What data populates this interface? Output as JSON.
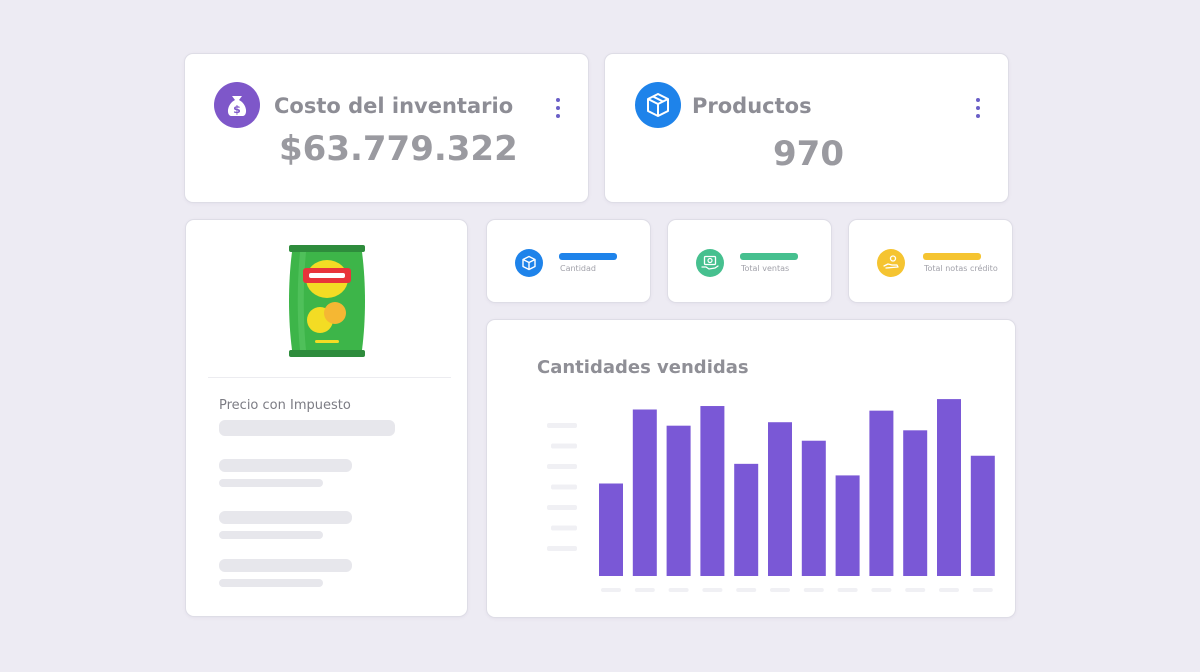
{
  "stats": {
    "costo": {
      "label": "Costo del inventario",
      "value": "$63.779.322",
      "icon": "money-bag-icon",
      "color": "#7e57c9"
    },
    "productos": {
      "label": "Productos",
      "value": "970",
      "icon": "box-icon",
      "color": "#1e83ea"
    }
  },
  "product_card": {
    "price_label": "Precio con Impuesto",
    "image": "chips-bag-icon"
  },
  "mini_cards": [
    {
      "label": "Cantidad",
      "icon": "box-icon",
      "color": "#1e83ea"
    },
    {
      "label": "Total ventas",
      "icon": "money-hand-icon",
      "color": "#46c08f"
    },
    {
      "label": "Total notas crédito",
      "icon": "hand-coin-icon",
      "color": "#f5c431"
    }
  ],
  "chart_data": {
    "type": "bar",
    "title": "Cantidades vendidas",
    "values": [
      80,
      144,
      130,
      147,
      97,
      133,
      117,
      87,
      143,
      126,
      153,
      104
    ],
    "ylim": [
      0,
      160
    ],
    "color": "#7a58d6",
    "grid": false
  }
}
